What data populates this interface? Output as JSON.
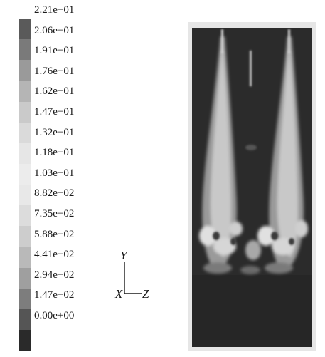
{
  "legend": {
    "labels": [
      "2.21e−01",
      "2.06e−01",
      "1.91e−01",
      "1.76e−01",
      "1.62e−01",
      "1.47e−01",
      "1.32e−01",
      "1.18e−01",
      "1.03e−01",
      "8.82e−02",
      "7.35e−02",
      "5.88e−02",
      "4.41e−02",
      "2.94e−02",
      "1.47e−02",
      "0.00e+00"
    ],
    "colors": [
      "#5a5a5a",
      "#7a7a7a",
      "#9a9a9a",
      "#b5b5b5",
      "#cacaca",
      "#dadada",
      "#e6e6e6",
      "#ececec",
      "#e8e8e8",
      "#dcdcdc",
      "#cdcdcd",
      "#b9b9b9",
      "#9f9f9f",
      "#7d7d7d",
      "#555555",
      "#2a2a2a"
    ]
  },
  "axes": {
    "y": "Y",
    "x": "X",
    "z": "Z"
  },
  "colors": {
    "domain_background": "#2b2b2b",
    "plume_light": "#d8d8d8",
    "plume_mid": "#a0a0a0"
  }
}
